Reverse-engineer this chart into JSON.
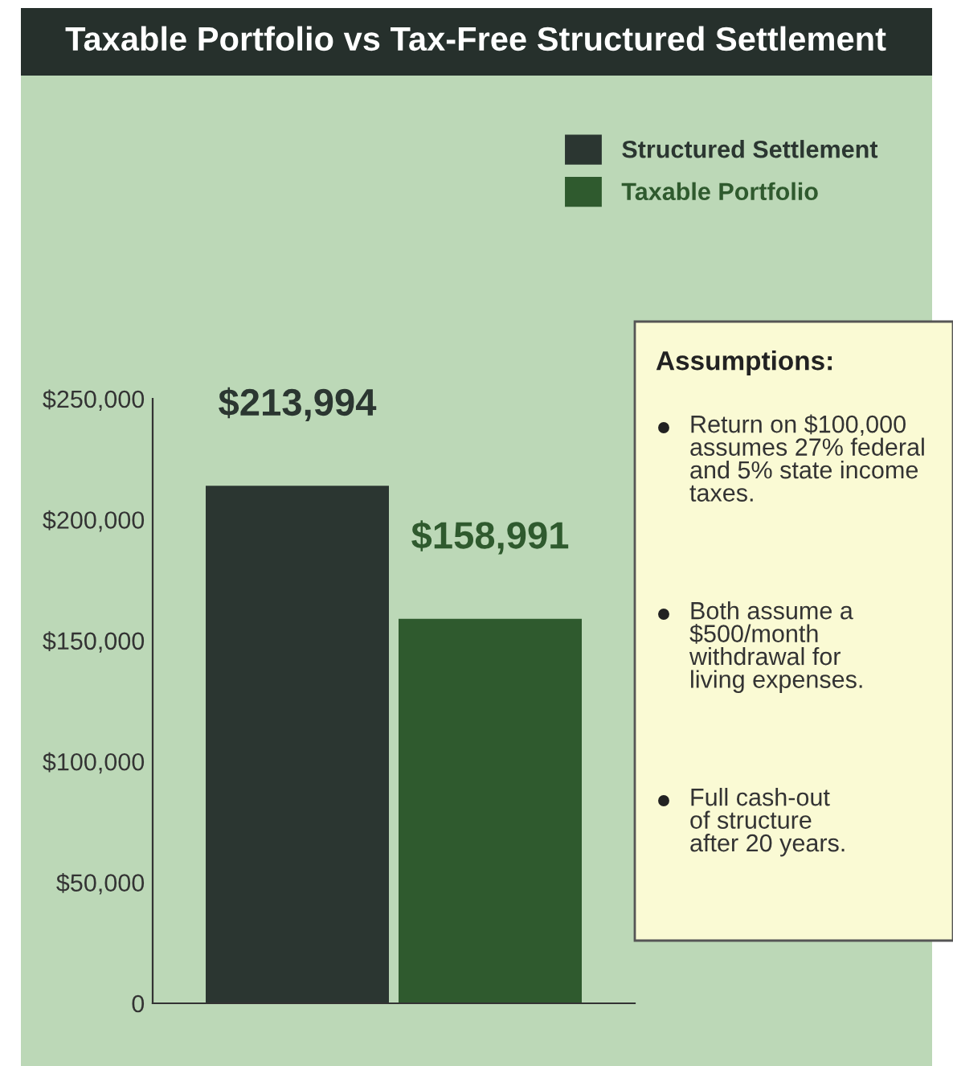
{
  "chart_data": {
    "type": "bar",
    "title": "Taxable Portfolio vs Tax-Free Structured Settlement",
    "categories": [
      null
    ],
    "series": [
      {
        "name": "Structured Settlement",
        "color": "#2b3631",
        "values": [
          213994
        ],
        "value_labels": [
          "$213,994"
        ]
      },
      {
        "name": "Taxable Portfolio",
        "color": "#2f5a2e",
        "values": [
          158991
        ],
        "value_labels": [
          "$158,991"
        ]
      }
    ],
    "ylim": [
      0,
      250000
    ],
    "yticks": [
      {
        "value": 0,
        "label": "0"
      },
      {
        "value": 50000,
        "label": "$50,000"
      },
      {
        "value": 100000,
        "label": "$100,000"
      },
      {
        "value": 150000,
        "label": "$150,000"
      },
      {
        "value": 200000,
        "label": "$200,000"
      },
      {
        "value": 250000,
        "label": "$250,000"
      }
    ],
    "grid": false,
    "legend": "top right",
    "annotations": [
      "Assumptions:",
      "Return on $100,000\nassumes 27% federal\nand 5% state income\ntaxes.",
      "Both assume a\n$500/month\nwithdrawal for\nliving expenses.",
      "Full cash-out\nof structure\nafter 20 years."
    ]
  }
}
